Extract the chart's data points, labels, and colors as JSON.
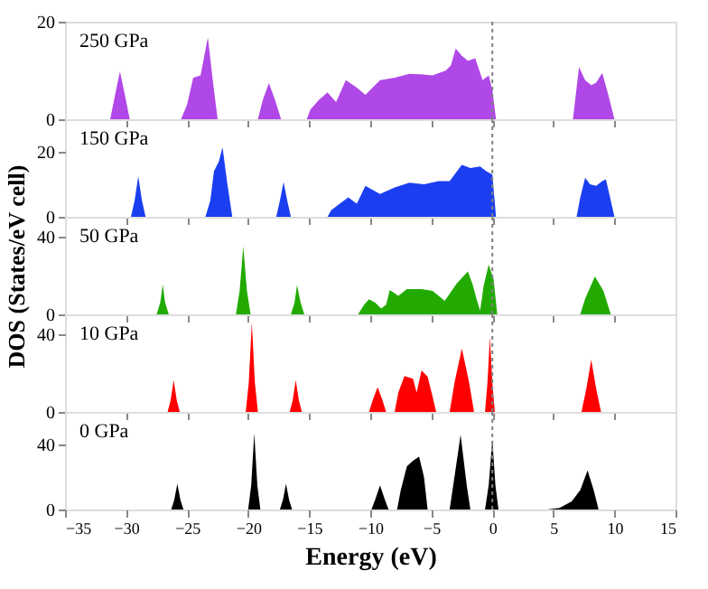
{
  "chart_data": [
    {
      "type": "area",
      "annotations": [
        "250 GPa"
      ],
      "xlim": [
        -35,
        15
      ],
      "xticks": [
        -35,
        -30,
        -25,
        -20,
        -15,
        -10,
        -5,
        0,
        5,
        10,
        15
      ],
      "ylim": [
        0,
        20
      ],
      "yticks": [
        0,
        20
      ],
      "tick_labels": "y",
      "grid": false,
      "ref_lines": [
        {
          "axis": "x",
          "value": 0,
          "color": "#808080",
          "line_style": "dotted"
        }
      ],
      "series": [
        {
          "color": "#b048e8",
          "x": [
            -33.3,
            -31.3,
            -30.9,
            -30.5,
            -30.1,
            -29.7,
            -25.5,
            -25,
            -24.5,
            -23.9,
            -23.3,
            -22.9,
            -22.5,
            -19.2,
            -18.8,
            -18.3,
            -17.8,
            -17.3,
            -15.2,
            -14.9,
            -14.2,
            -13.5,
            -12.8,
            -12,
            -11.1,
            -10.4,
            -9.2,
            -8,
            -6.8,
            -5.8,
            -4.9,
            -3.8,
            -3.4,
            -3,
            -2.5,
            -2,
            -1.4,
            -0.8,
            -0.3,
            0,
            0.3,
            6.6,
            7.1,
            7.6,
            8.1,
            8.5,
            9,
            9.5,
            10,
            11.9
          ],
          "values": [
            0,
            0,
            5,
            9.8,
            5,
            0,
            0,
            3,
            8.5,
            9,
            16.8,
            8,
            0,
            0,
            4,
            7.4,
            4,
            0,
            0,
            2,
            4,
            5.5,
            3.5,
            8,
            6.5,
            5,
            8,
            8.5,
            9.3,
            9.2,
            9,
            10,
            11,
            14.5,
            13,
            12,
            12.5,
            8,
            9,
            6,
            0,
            0,
            10.7,
            8,
            7,
            7.5,
            9.5,
            5,
            0,
            0
          ]
        }
      ]
    },
    {
      "type": "area",
      "annotations": [
        "150 GPa"
      ],
      "xlim": [
        -35,
        15
      ],
      "xticks": [
        -35,
        -30,
        -25,
        -20,
        -15,
        -10,
        -5,
        0,
        5,
        10,
        15
      ],
      "ylim": [
        0,
        30
      ],
      "yticks": [
        0,
        20
      ],
      "tick_labels": "y",
      "grid": false,
      "ref_lines": [
        {
          "axis": "x",
          "value": 0,
          "color": "#808080",
          "line_style": "dotted"
        }
      ],
      "series": [
        {
          "color": "#1b3ff0",
          "x": [
            -31,
            -29.6,
            -29.3,
            -29,
            -28.7,
            -28.4,
            -23.5,
            -23.1,
            -22.8,
            -22.4,
            -22.1,
            -21.7,
            -21.3,
            -17.7,
            -17.4,
            -17.1,
            -16.8,
            -16.5,
            -13.5,
            -13.2,
            -12.5,
            -11.8,
            -11.1,
            -10.4,
            -9.2,
            -8,
            -6.8,
            -5.6,
            -4.4,
            -3.5,
            -2.5,
            -1.8,
            -1,
            -0.5,
            0,
            0.3,
            6.9,
            7.2,
            7.6,
            8,
            8.5,
            9,
            9.3,
            9.7,
            10,
            11.5
          ],
          "values": [
            0,
            0,
            5,
            12.5,
            5,
            0,
            0,
            5,
            14,
            17,
            21.4,
            10,
            0,
            0,
            5,
            10.7,
            5,
            0,
            0,
            2,
            4,
            6,
            4,
            9.5,
            7,
            9,
            10.5,
            10,
            11,
            11,
            16,
            15,
            15.5,
            14,
            13,
            0,
            0,
            6,
            12,
            10,
            9.5,
            11,
            11.5,
            5,
            0,
            0
          ]
        }
      ]
    },
    {
      "type": "area",
      "annotations": [
        "50 GPa"
      ],
      "ylabel": "DOS (States/eV cell)",
      "xlim": [
        -35,
        15
      ],
      "xticks": [
        -35,
        -30,
        -25,
        -20,
        -15,
        -10,
        -5,
        0,
        5,
        10,
        15
      ],
      "ylim": [
        0,
        50
      ],
      "yticks": [
        0,
        40
      ],
      "tick_labels": "y",
      "grid": false,
      "ref_lines": [
        {
          "axis": "x",
          "value": 0,
          "color": "#808080",
          "line_style": "dotted"
        }
      ],
      "series": [
        {
          "color": "#22aa00",
          "x": [
            -29.3,
            -27.5,
            -27.2,
            -27,
            -26.8,
            -26.5,
            -21,
            -20.7,
            -20.4,
            -20.1,
            -19.8,
            -16.5,
            -16.2,
            -16,
            -15.7,
            -15.4,
            -11,
            -10.5,
            -10.1,
            -9.6,
            -9.1,
            -8.7,
            -8.4,
            -7.7,
            -7,
            -5.8,
            -4.9,
            -3.9,
            -2.9,
            -2,
            -1.6,
            -1.3,
            -1,
            -0.7,
            -0.3,
            0.1,
            0.4,
            7.2,
            7.6,
            8.4,
            9.1,
            9.7,
            11.7
          ],
          "values": [
            0,
            0,
            6,
            15.4,
            6,
            0,
            0,
            12,
            35,
            12,
            0,
            0,
            6,
            15,
            6,
            0,
            0,
            5,
            7.7,
            6,
            3,
            5,
            12.5,
            9.5,
            13,
            13,
            12,
            7,
            16,
            22,
            15,
            8,
            2,
            15,
            25.5,
            18,
            0,
            0,
            8,
            19.5,
            12,
            0,
            0
          ]
        }
      ]
    },
    {
      "type": "area",
      "annotations": [
        "10 GPa"
      ],
      "xlim": [
        -35,
        15
      ],
      "xticks": [
        -35,
        -30,
        -25,
        -20,
        -15,
        -10,
        -5,
        0,
        5,
        10,
        15
      ],
      "ylim": [
        0,
        50
      ],
      "yticks": [
        0,
        40
      ],
      "tick_labels": "y",
      "grid": false,
      "ref_lines": [
        {
          "axis": "x",
          "value": 0,
          "color": "#808080",
          "line_style": "dotted"
        }
      ],
      "series": [
        {
          "color": "#ff0000",
          "x": [
            -28.4,
            -26.6,
            -26.35,
            -26.1,
            -25.85,
            -25.6,
            -20.2,
            -19.95,
            -19.7,
            -19.45,
            -19.2,
            -16.6,
            -16.35,
            -16.1,
            -15.85,
            -15.6,
            -10.1,
            -9.8,
            -9.4,
            -9,
            -8.7,
            -8,
            -7.7,
            -7.2,
            -6.5,
            -6.2,
            -5.8,
            -5.3,
            -4.9,
            -4.6,
            -3.5,
            -3.1,
            -2.5,
            -1.9,
            -1.5,
            -0.6,
            -0.4,
            -0.2,
            0,
            0.2,
            7.3,
            7.7,
            8.1,
            8.5,
            8.9,
            10.5
          ],
          "values": [
            0,
            0,
            6,
            16.3,
            6,
            0,
            0,
            15,
            45.9,
            15,
            0,
            0,
            6,
            16.3,
            6,
            0,
            0,
            6,
            12.7,
            6,
            0,
            0,
            10,
            18.4,
            17,
            10,
            21.3,
            18,
            8,
            0,
            0,
            15,
            32.5,
            15,
            0,
            0,
            15,
            38.5,
            15,
            0,
            0,
            12,
            26.7,
            12,
            0,
            0
          ]
        }
      ]
    },
    {
      "type": "area",
      "annotations": [
        "0 GPa"
      ],
      "xlabel": "Energy (eV)",
      "xlim": [
        -35,
        15
      ],
      "xticks": [
        -35,
        -30,
        -25,
        -20,
        -15,
        -10,
        -5,
        0,
        5,
        10,
        15
      ],
      "ylim": [
        0,
        60
      ],
      "yticks": [
        0,
        40
      ],
      "grid": false,
      "ref_lines": [
        {
          "axis": "x",
          "value": 0,
          "color": "#808080",
          "line_style": "dotted"
        }
      ],
      "series": [
        {
          "color": "#000000",
          "x": [
            -28,
            -26.3,
            -26.05,
            -25.8,
            -25.55,
            -25.3,
            -20,
            -19.75,
            -19.5,
            -19.25,
            -19,
            -17.4,
            -17.15,
            -16.9,
            -16.65,
            -16.4,
            -9.9,
            -9.6,
            -9.2,
            -8.8,
            -8.5,
            -7.8,
            -7.5,
            -7,
            -6.5,
            -6,
            -5.6,
            -5.3,
            -3.5,
            -3.2,
            -2.6,
            -2.1,
            -1.8,
            -0.6,
            -0.3,
            0,
            0.25,
            0.5,
            4.5,
            5.5,
            6.5,
            7.2,
            7.8,
            8.3,
            8.7,
            10.5
          ],
          "values": [
            0,
            0,
            6,
            15.9,
            6,
            0,
            0,
            15,
            47,
            15,
            0,
            0,
            6,
            15.9,
            6,
            0,
            0,
            6,
            14.9,
            6,
            0,
            0,
            12,
            26.5,
            30,
            32.5,
            20,
            0,
            0,
            15,
            46,
            15,
            0,
            0,
            15,
            43,
            15,
            0,
            0,
            1,
            5,
            12,
            24,
            12,
            0,
            0
          ]
        }
      ]
    }
  ]
}
